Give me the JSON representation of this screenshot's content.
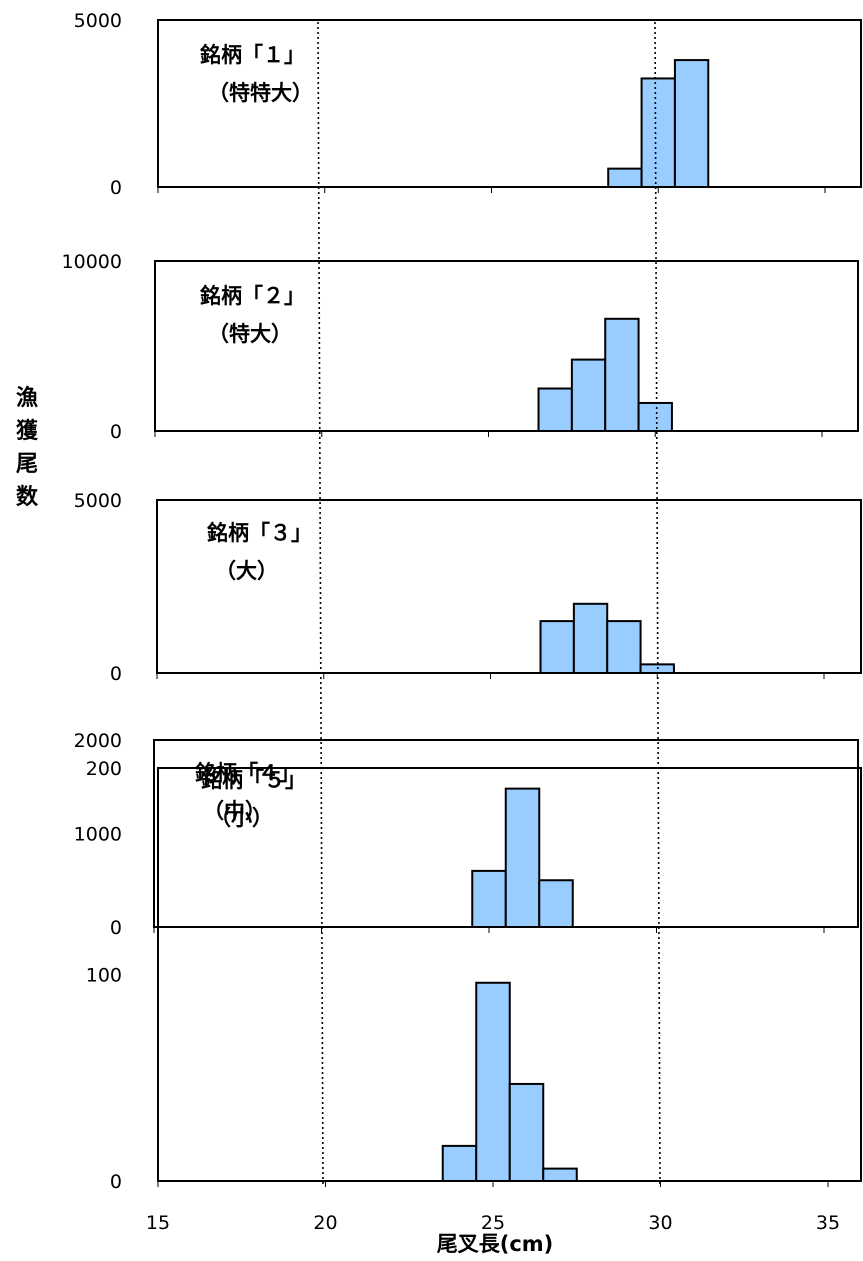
{
  "chart_data": {
    "type": "bar",
    "xlabel": "尾叉長(cm)",
    "ylabel": "漁獲尾数",
    "xlim": [
      15,
      35
    ],
    "x_ticks": [
      "15",
      "20",
      "25",
      "30",
      "35"
    ],
    "bin_width_cm": 1,
    "reference_lines_x": [
      20,
      30
    ],
    "bar_color": "#99ccff",
    "panels": [
      {
        "label": "銘柄「１」",
        "sublabel": "（特特大）",
        "ylim": [
          0,
          5000
        ],
        "y_ticks": [
          "0",
          "5000"
        ],
        "bins": [
          {
            "x": 29,
            "value": 550
          },
          {
            "x": 30,
            "value": 3250
          },
          {
            "x": 31,
            "value": 3800
          }
        ]
      },
      {
        "label": "銘柄「２」",
        "sublabel": "（特大）",
        "ylim": [
          0,
          10000
        ],
        "y_ticks": [
          "0",
          "10000"
        ],
        "bins": [
          {
            "x": 27,
            "value": 2500
          },
          {
            "x": 28,
            "value": 4200
          },
          {
            "x": 29,
            "value": 6600
          },
          {
            "x": 30,
            "value": 1650
          }
        ]
      },
      {
        "label": "銘柄「３」",
        "sublabel": "（大）",
        "ylim": [
          0,
          5000
        ],
        "y_ticks": [
          "0",
          "5000"
        ],
        "bins": [
          {
            "x": 27,
            "value": 1500
          },
          {
            "x": 28,
            "value": 2000
          },
          {
            "x": 29,
            "value": 1500
          },
          {
            "x": 30,
            "value": 250
          }
        ]
      },
      {
        "label": "銘柄「４」",
        "sublabel": "（中）",
        "ylim": [
          0,
          2000
        ],
        "y_ticks": [
          "0",
          "1000",
          "2000"
        ],
        "bins": [
          {
            "x": 25,
            "value": 600
          },
          {
            "x": 26,
            "value": 1480
          },
          {
            "x": 27,
            "value": 500
          }
        ]
      },
      {
        "label": "銘柄「５」",
        "sublabel": "（小）",
        "ylim": [
          0,
          200
        ],
        "y_ticks": [
          "0",
          "100",
          "200"
        ],
        "bins": [
          {
            "x": 24,
            "value": 17
          },
          {
            "x": 25,
            "value": 96
          },
          {
            "x": 26,
            "value": 47
          },
          {
            "x": 27,
            "value": 6
          }
        ]
      }
    ]
  }
}
